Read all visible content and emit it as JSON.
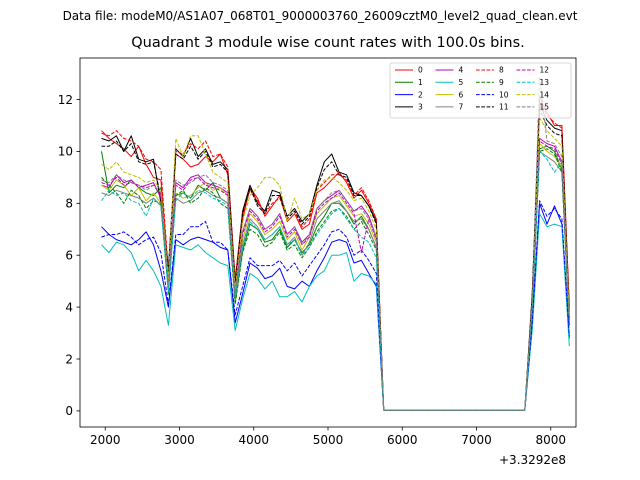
{
  "suptitle": "Data file: modeM0/AS1A07_068T01_9000003760_26009cztM0_level2_quad_clean.evt",
  "chart_data": {
    "type": "line",
    "title": "Quadrant 3 module wise count rates with 100.0s bins.",
    "xlabel": "",
    "ylabel": "",
    "x_offset_label": "+3.3292e8",
    "xlim": [
      1660,
      8340
    ],
    "ylim": [
      -0.62,
      13.6
    ],
    "xticks": [
      2000,
      3000,
      4000,
      5000,
      6000,
      7000,
      8000
    ],
    "yticks": [
      0,
      2,
      4,
      6,
      8,
      10,
      12
    ],
    "legend_position": "top-right",
    "x": [
      1950,
      2050,
      2150,
      2250,
      2350,
      2450,
      2550,
      2650,
      2750,
      2850,
      2950,
      3050,
      3150,
      3250,
      3350,
      3450,
      3550,
      3650,
      3750,
      3850,
      3950,
      4050,
      4150,
      4250,
      4350,
      4450,
      4550,
      4650,
      4750,
      4850,
      4950,
      5050,
      5150,
      5250,
      5350,
      5450,
      5550,
      5650,
      5750,
      5850,
      5950,
      6050,
      6150,
      6250,
      6350,
      6450,
      6550,
      6650,
      6750,
      6850,
      6950,
      7050,
      7150,
      7250,
      7350,
      7450,
      7550,
      7650,
      7750,
      7850,
      7950,
      8050,
      8150,
      8250
    ],
    "series": [
      {
        "name": "0",
        "color": "#ff0000",
        "dash": false,
        "values": [
          10.8,
          10.5,
          10.3,
          10.1,
          9.8,
          10.2,
          9.5,
          9.0,
          8.9,
          5.3,
          9.9,
          9.7,
          9.4,
          9.5,
          9.8,
          9.6,
          9.9,
          9.1,
          4.8,
          7.4,
          8.6,
          8.2,
          7.5,
          7.9,
          8.3,
          7.3,
          7.6,
          7.0,
          7.2,
          8.4,
          8.6,
          8.9,
          9.2,
          8.8,
          8.2,
          8.5,
          8.0,
          7.4,
          0.03,
          0.03,
          0.03,
          0.03,
          0.03,
          0.03,
          0.03,
          0.03,
          0.03,
          0.03,
          0.03,
          0.03,
          0.03,
          0.03,
          0.03,
          0.03,
          0.03,
          0.03,
          0.03,
          0.03,
          4.2,
          12.1,
          11.5,
          11.0,
          11.0,
          4.0
        ]
      },
      {
        "name": "1",
        "color": "#008000",
        "dash": false,
        "values": [
          10.0,
          8.4,
          8.7,
          8.6,
          8.9,
          8.6,
          8.4,
          8.3,
          8.6,
          4.8,
          8.3,
          8.4,
          8.2,
          8.7,
          8.5,
          8.8,
          8.2,
          8.0,
          4.2,
          6.2,
          7.2,
          7.0,
          6.5,
          6.6,
          7.0,
          6.3,
          6.6,
          6.1,
          6.4,
          7.1,
          7.5,
          8.0,
          8.0,
          7.7,
          7.2,
          7.5,
          7.0,
          6.3,
          0.03,
          0.03,
          0.03,
          0.03,
          0.03,
          0.03,
          0.03,
          0.03,
          0.03,
          0.03,
          0.03,
          0.03,
          0.03,
          0.03,
          0.03,
          0.03,
          0.03,
          0.03,
          0.03,
          0.03,
          3.8,
          10.1,
          10.2,
          10.0,
          9.3,
          3.3
        ]
      },
      {
        "name": "2",
        "color": "#0000ff",
        "dash": false,
        "values": [
          7.1,
          6.8,
          6.6,
          6.5,
          6.4,
          6.6,
          6.9,
          6.4,
          5.4,
          4.0,
          6.6,
          6.4,
          6.6,
          6.7,
          6.6,
          6.5,
          6.3,
          6.2,
          3.4,
          4.5,
          5.7,
          5.5,
          5.1,
          5.2,
          5.5,
          4.8,
          4.7,
          5.0,
          4.8,
          5.4,
          5.9,
          6.5,
          6.6,
          6.5,
          5.7,
          5.8,
          5.3,
          4.8,
          0.03,
          0.03,
          0.03,
          0.03,
          0.03,
          0.03,
          0.03,
          0.03,
          0.03,
          0.03,
          0.03,
          0.03,
          0.03,
          0.03,
          0.03,
          0.03,
          0.03,
          0.03,
          0.03,
          0.03,
          3.3,
          8.0,
          7.2,
          7.9,
          7.2,
          2.8
        ]
      },
      {
        "name": "3",
        "color": "#000000",
        "dash": false,
        "values": [
          10.5,
          10.4,
          10.6,
          10.0,
          10.6,
          9.7,
          9.6,
          9.7,
          8.0,
          5.5,
          10.1,
          9.8,
          10.5,
          9.8,
          10.1,
          9.5,
          9.6,
          9.3,
          5.0,
          7.7,
          8.7,
          8.0,
          7.7,
          8.5,
          8.4,
          7.5,
          7.8,
          7.3,
          7.6,
          8.7,
          9.6,
          9.9,
          9.2,
          9.1,
          8.4,
          8.3,
          7.9,
          7.3,
          0.03,
          0.03,
          0.03,
          0.03,
          0.03,
          0.03,
          0.03,
          0.03,
          0.03,
          0.03,
          0.03,
          0.03,
          0.03,
          0.03,
          0.03,
          0.03,
          0.03,
          0.03,
          0.03,
          0.03,
          4.5,
          11.8,
          11.2,
          10.9,
          10.8,
          3.9
        ]
      },
      {
        "name": "4",
        "color": "#bf00bf",
        "dash": false,
        "values": [
          8.7,
          8.6,
          9.1,
          8.8,
          8.9,
          8.6,
          8.7,
          8.8,
          8.2,
          4.9,
          8.8,
          8.6,
          9.0,
          9.1,
          8.8,
          8.7,
          8.6,
          8.4,
          4.6,
          6.9,
          7.8,
          7.5,
          7.0,
          7.2,
          7.6,
          6.8,
          7.1,
          6.5,
          6.8,
          7.8,
          8.1,
          8.3,
          8.5,
          8.1,
          7.7,
          7.9,
          7.5,
          6.7,
          0.03,
          0.03,
          0.03,
          0.03,
          0.03,
          0.03,
          0.03,
          0.03,
          0.03,
          0.03,
          0.03,
          0.03,
          0.03,
          0.03,
          0.03,
          0.03,
          0.03,
          0.03,
          0.03,
          0.03,
          4.1,
          10.5,
          10.3,
          10.2,
          9.6,
          3.6
        ]
      },
      {
        "name": "5",
        "color": "#00bfbf",
        "dash": false,
        "values": [
          6.4,
          6.1,
          6.5,
          6.4,
          6.1,
          5.4,
          5.8,
          5.4,
          4.8,
          3.3,
          6.4,
          6.3,
          6.2,
          6.4,
          6.1,
          5.9,
          5.7,
          5.6,
          3.1,
          4.3,
          5.3,
          5.1,
          4.7,
          5.0,
          4.4,
          4.4,
          4.6,
          4.2,
          4.8,
          5.2,
          5.4,
          6.0,
          6.0,
          6.1,
          5.0,
          5.3,
          5.2,
          4.9,
          0.03,
          0.03,
          0.03,
          0.03,
          0.03,
          0.03,
          0.03,
          0.03,
          0.03,
          0.03,
          0.03,
          0.03,
          0.03,
          0.03,
          0.03,
          0.03,
          0.03,
          0.03,
          0.03,
          0.03,
          3.1,
          7.6,
          7.1,
          7.2,
          7.1,
          2.5
        ]
      },
      {
        "name": "6",
        "color": "#bfbf00",
        "dash": false,
        "values": [
          8.7,
          8.5,
          8.9,
          8.7,
          8.3,
          8.6,
          8.1,
          8.4,
          8.0,
          4.7,
          8.4,
          8.2,
          8.3,
          8.6,
          8.8,
          8.5,
          8.6,
          8.3,
          4.3,
          6.6,
          7.6,
          7.3,
          6.8,
          7.0,
          7.3,
          6.6,
          6.9,
          6.2,
          6.7,
          7.6,
          7.9,
          8.2,
          8.3,
          7.9,
          7.5,
          7.6,
          7.2,
          6.5,
          0.03,
          0.03,
          0.03,
          0.03,
          0.03,
          0.03,
          0.03,
          0.03,
          0.03,
          0.03,
          0.03,
          0.03,
          0.03,
          0.03,
          0.03,
          0.03,
          0.03,
          0.03,
          0.03,
          0.03,
          4.0,
          10.3,
          10.0,
          9.8,
          9.4,
          3.5
        ]
      },
      {
        "name": "7",
        "color": "#808080",
        "dash": false,
        "values": [
          8.4,
          8.3,
          8.5,
          8.4,
          8.3,
          8.2,
          8.0,
          8.2,
          7.9,
          4.6,
          8.2,
          8.0,
          8.1,
          8.4,
          8.5,
          8.3,
          8.2,
          8.0,
          4.2,
          6.4,
          7.4,
          7.1,
          6.6,
          6.8,
          7.1,
          6.4,
          6.7,
          6.0,
          6.5,
          7.4,
          7.7,
          8.0,
          8.1,
          7.7,
          7.3,
          7.4,
          7.0,
          6.3,
          0.03,
          0.03,
          0.03,
          0.03,
          0.03,
          0.03,
          0.03,
          0.03,
          0.03,
          0.03,
          0.03,
          0.03,
          0.03,
          0.03,
          0.03,
          0.03,
          0.03,
          0.03,
          0.03,
          0.03,
          3.9,
          10.0,
          9.8,
          9.6,
          9.2,
          3.4
        ]
      },
      {
        "name": "8",
        "color": "#ff0000",
        "dash": true,
        "values": [
          10.7,
          10.6,
          10.8,
          10.5,
          10.4,
          10.2,
          9.7,
          9.6,
          9.3,
          5.4,
          10.0,
          9.9,
          10.3,
          10.1,
          10.4,
          9.8,
          9.9,
          9.4,
          5.1,
          7.6,
          8.5,
          8.1,
          7.6,
          8.0,
          8.2,
          7.4,
          7.7,
          7.1,
          7.4,
          8.5,
          8.8,
          9.1,
          9.1,
          8.9,
          8.3,
          8.6,
          8.1,
          7.4,
          0.03,
          0.03,
          0.03,
          0.03,
          0.03,
          0.03,
          0.03,
          0.03,
          0.03,
          0.03,
          0.03,
          0.03,
          0.03,
          0.03,
          0.03,
          0.03,
          0.03,
          0.03,
          0.03,
          0.03,
          4.3,
          11.9,
          11.4,
          11.1,
          10.9,
          4.1
        ]
      },
      {
        "name": "9",
        "color": "#008000",
        "dash": true,
        "values": [
          9.0,
          8.7,
          8.4,
          8.0,
          8.5,
          8.3,
          7.8,
          8.1,
          8.0,
          4.5,
          8.3,
          8.5,
          8.0,
          8.2,
          8.6,
          8.4,
          8.0,
          7.8,
          4.1,
          6.1,
          7.0,
          6.8,
          6.3,
          6.5,
          6.9,
          6.2,
          6.4,
          5.9,
          6.3,
          6.9,
          7.3,
          7.7,
          7.8,
          7.5,
          7.0,
          7.3,
          6.8,
          6.2,
          0.03,
          0.03,
          0.03,
          0.03,
          0.03,
          0.03,
          0.03,
          0.03,
          0.03,
          0.03,
          0.03,
          0.03,
          0.03,
          0.03,
          0.03,
          0.03,
          0.03,
          0.03,
          0.03,
          0.03,
          3.8,
          10.0,
          10.1,
          9.9,
          9.2,
          3.3
        ]
      },
      {
        "name": "10",
        "color": "#0000ff",
        "dash": true,
        "values": [
          6.7,
          6.8,
          6.8,
          6.9,
          6.7,
          6.4,
          6.6,
          6.7,
          6.1,
          4.1,
          6.8,
          6.8,
          7.1,
          7.1,
          7.3,
          6.5,
          6.5,
          6.2,
          3.7,
          4.8,
          5.9,
          5.6,
          5.6,
          5.6,
          5.8,
          5.4,
          5.7,
          5.2,
          5.6,
          6.0,
          6.4,
          6.9,
          7.0,
          6.7,
          6.0,
          6.2,
          5.8,
          5.3,
          0.03,
          0.03,
          0.03,
          0.03,
          0.03,
          0.03,
          0.03,
          0.03,
          0.03,
          0.03,
          0.03,
          0.03,
          0.03,
          0.03,
          0.03,
          0.03,
          0.03,
          0.03,
          0.03,
          0.03,
          3.4,
          8.1,
          7.5,
          7.8,
          7.4,
          2.9
        ]
      },
      {
        "name": "11",
        "color": "#000000",
        "dash": true,
        "values": [
          10.2,
          10.2,
          10.4,
          10.0,
          10.3,
          9.6,
          9.5,
          9.6,
          8.2,
          5.4,
          9.9,
          9.7,
          10.2,
          9.7,
          10.0,
          9.4,
          9.5,
          9.2,
          4.9,
          7.6,
          8.6,
          7.9,
          7.6,
          8.3,
          8.3,
          7.4,
          7.7,
          7.2,
          7.5,
          8.6,
          9.3,
          9.6,
          9.1,
          9.0,
          8.3,
          8.3,
          7.9,
          7.2,
          0.03,
          0.03,
          0.03,
          0.03,
          0.03,
          0.03,
          0.03,
          0.03,
          0.03,
          0.03,
          0.03,
          0.03,
          0.03,
          0.03,
          0.03,
          0.03,
          0.03,
          0.03,
          0.03,
          0.03,
          4.4,
          11.6,
          11.0,
          10.7,
          10.6,
          3.8
        ]
      },
      {
        "name": "12",
        "color": "#bf00bf",
        "dash": true,
        "values": [
          8.8,
          8.7,
          9.0,
          8.7,
          8.8,
          8.7,
          8.6,
          8.7,
          8.3,
          5.0,
          8.7,
          8.5,
          8.9,
          9.0,
          8.7,
          8.6,
          8.5,
          8.3,
          4.5,
          6.8,
          7.7,
          7.4,
          6.9,
          7.1,
          7.5,
          6.7,
          7.0,
          6.4,
          6.7,
          7.7,
          8.0,
          8.2,
          8.4,
          8.0,
          7.6,
          6.1,
          7.4,
          6.6,
          0.03,
          0.03,
          0.03,
          0.03,
          0.03,
          0.03,
          0.03,
          0.03,
          0.03,
          0.03,
          0.03,
          0.03,
          0.03,
          0.03,
          0.03,
          0.03,
          0.03,
          0.03,
          0.03,
          0.03,
          4.0,
          10.4,
          10.2,
          10.1,
          9.5,
          3.5
        ]
      },
      {
        "name": "13",
        "color": "#00bfbf",
        "dash": true,
        "values": [
          8.1,
          8.5,
          8.3,
          8.4,
          8.1,
          8.0,
          7.5,
          8.2,
          7.9,
          4.6,
          8.1,
          8.4,
          8.2,
          8.5,
          8.4,
          8.2,
          8.1,
          7.9,
          4.4,
          6.3,
          7.3,
          7.0,
          6.6,
          6.8,
          7.1,
          6.4,
          6.6,
          6.0,
          6.3,
          6.8,
          7.2,
          7.6,
          7.8,
          7.4,
          7.0,
          6.7,
          6.5,
          5.9,
          0.03,
          0.03,
          0.03,
          0.03,
          0.03,
          0.03,
          0.03,
          0.03,
          0.03,
          0.03,
          0.03,
          0.03,
          0.03,
          0.03,
          0.03,
          0.03,
          0.03,
          0.03,
          0.03,
          0.03,
          3.9,
          10.0,
          9.7,
          9.2,
          9.6,
          3.4
        ]
      },
      {
        "name": "14",
        "color": "#bfbf00",
        "dash": true,
        "values": [
          9.5,
          9.3,
          9.6,
          9.2,
          9.1,
          9.0,
          8.8,
          8.9,
          8.5,
          5.1,
          10.5,
          9.8,
          10.6,
          10.6,
          9.9,
          9.2,
          9.0,
          8.8,
          4.7,
          7.3,
          8.3,
          8.6,
          9.0,
          9.0,
          8.7,
          7.3,
          8.2,
          7.4,
          7.6,
          8.5,
          8.9,
          9.0,
          8.8,
          8.5,
          8.1,
          8.2,
          7.7,
          7.0,
          0.03,
          0.03,
          0.03,
          0.03,
          0.03,
          0.03,
          0.03,
          0.03,
          0.03,
          0.03,
          0.03,
          0.03,
          0.03,
          0.03,
          0.03,
          0.03,
          0.03,
          0.03,
          0.03,
          0.03,
          4.2,
          11.3,
          10.8,
          10.5,
          10.2,
          3.7
        ]
      },
      {
        "name": "15",
        "color": "#808080",
        "dash": true,
        "values": [
          8.9,
          8.8,
          9.1,
          8.9,
          8.8,
          8.7,
          8.5,
          8.7,
          8.4,
          5.0,
          8.9,
          8.7,
          8.8,
          9.0,
          9.1,
          8.8,
          8.7,
          8.5,
          4.5,
          6.9,
          7.8,
          7.5,
          7.0,
          7.2,
          7.6,
          6.8,
          7.1,
          6.4,
          6.8,
          7.8,
          8.1,
          8.4,
          8.5,
          8.1,
          7.7,
          7.8,
          7.4,
          6.7,
          0.03,
          0.03,
          0.03,
          0.03,
          0.03,
          0.03,
          0.03,
          0.03,
          0.03,
          0.03,
          0.03,
          0.03,
          0.03,
          0.03,
          0.03,
          0.03,
          0.03,
          0.03,
          0.03,
          0.03,
          4.1,
          12.9,
          10.4,
          10.3,
          9.8,
          3.6
        ]
      }
    ]
  }
}
